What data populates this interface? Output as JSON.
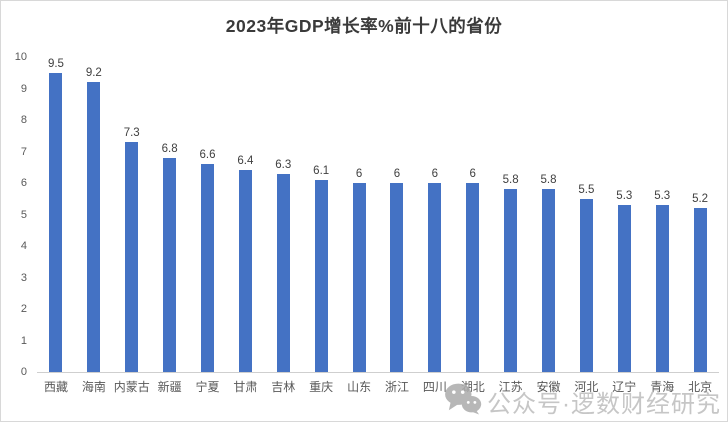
{
  "chart_data": {
    "type": "bar",
    "title": "2023年GDP增长率%前十八的省份",
    "categories": [
      "西藏",
      "海南",
      "内蒙古",
      "新疆",
      "宁夏",
      "甘肃",
      "吉林",
      "重庆",
      "山东",
      "浙江",
      "四川",
      "湖北",
      "江苏",
      "安徽",
      "河北",
      "辽宁",
      "青海",
      "北京"
    ],
    "values": [
      9.5,
      9.2,
      7.3,
      6.8,
      6.6,
      6.4,
      6.3,
      6.1,
      6,
      6,
      6,
      6,
      5.8,
      5.8,
      5.5,
      5.3,
      5.3,
      5.2
    ],
    "xlabel": "",
    "ylabel": "",
    "ylim": [
      0,
      10
    ],
    "ytick_step": 1,
    "grid": false,
    "legend_position": "none",
    "bar_color": "#4472C4",
    "label_color": "#404040",
    "axis_text_color": "#595959"
  },
  "watermark": {
    "icon": "wechat-icon",
    "text": "公众号·逻数财经研究",
    "color": "#c6c6c6"
  }
}
